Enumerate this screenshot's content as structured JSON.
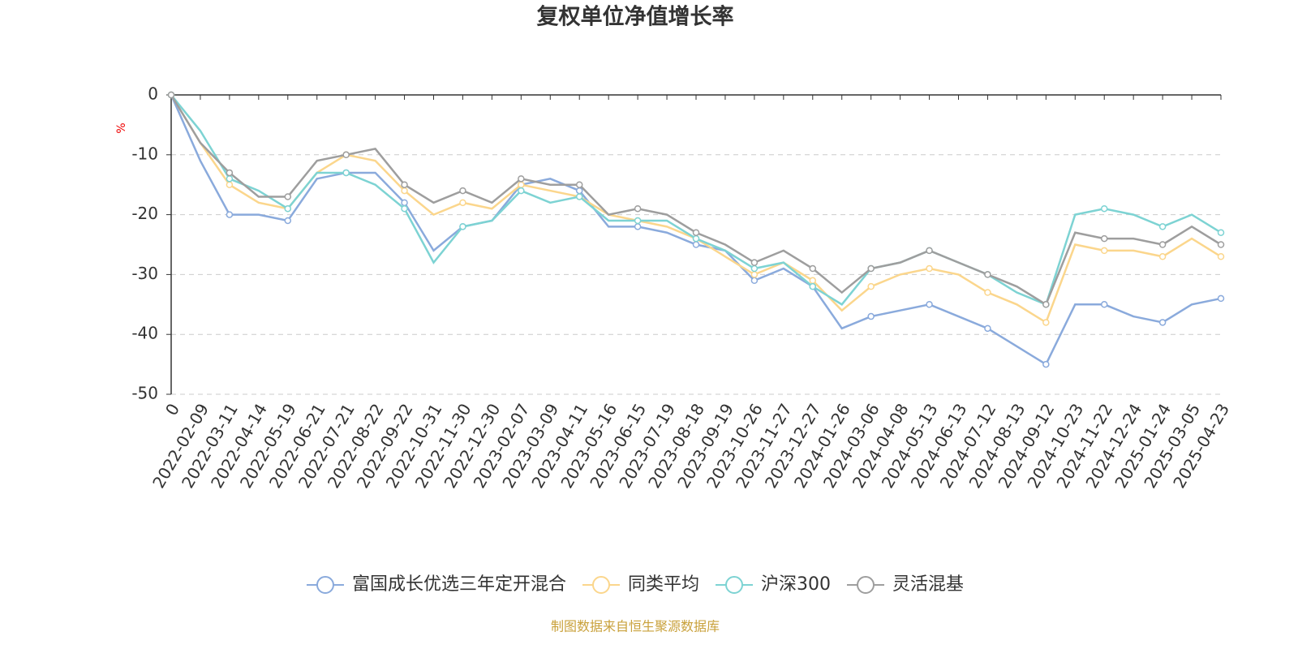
{
  "chart_data": {
    "type": "line",
    "title": "复权单位净值增长率",
    "y_label": "%",
    "source": "制图数据来自恒生聚源数据库",
    "categories": [
      "0",
      "2022-02-09",
      "2022-03-11",
      "2022-04-14",
      "2022-05-19",
      "2022-06-21",
      "2022-07-21",
      "2022-08-22",
      "2022-09-22",
      "2022-10-31",
      "2022-11-30",
      "2022-12-30",
      "2023-02-07",
      "2023-03-09",
      "2023-04-11",
      "2023-05-16",
      "2023-06-15",
      "2023-07-19",
      "2023-08-18",
      "2023-09-19",
      "2023-10-26",
      "2023-11-27",
      "2023-12-27",
      "2024-01-26",
      "2024-03-06",
      "2024-04-08",
      "2024-05-13",
      "2024-06-13",
      "2024-07-12",
      "2024-08-13",
      "2024-09-12",
      "2024-10-23",
      "2024-11-22",
      "2024-12-24",
      "2025-01-24",
      "2025-03-05",
      "2025-04-23"
    ],
    "series": [
      {
        "name": "富国成长优选三年定开混合",
        "color": "#8aaadc",
        "values": [
          0,
          -11,
          -20,
          -20,
          -21,
          -14,
          -13,
          -13,
          -18,
          -26,
          -22,
          -21,
          -15,
          -14,
          -16,
          -22,
          -22,
          -23,
          -25,
          -26,
          -31,
          -29,
          -32,
          -39,
          -37,
          -36,
          -35,
          -37,
          -39,
          -42,
          -45,
          -35,
          -35,
          -37,
          -38,
          -35,
          -34
        ]
      },
      {
        "name": "同类平均",
        "color": "#fbd68c",
        "values": [
          0,
          -8,
          -15,
          -18,
          -19,
          -13,
          -10,
          -11,
          -16,
          -20,
          -18,
          -19,
          -15,
          -16,
          -17,
          -20,
          -21,
          -22,
          -24,
          -27,
          -30,
          -28,
          -31,
          -36,
          -32,
          -30,
          -29,
          -30,
          -33,
          -35,
          -38,
          -25,
          -26,
          -26,
          -27,
          -24,
          -27
        ]
      },
      {
        "name": "沪深300",
        "color": "#7dd3d3",
        "values": [
          0,
          -6,
          -14,
          -16,
          -19,
          -13,
          -13,
          -15,
          -19,
          -28,
          -22,
          -21,
          -16,
          -18,
          -17,
          -21,
          -21,
          -21,
          -24,
          -26,
          -29,
          -28,
          -32,
          -35,
          -29,
          -28,
          -26,
          -28,
          -30,
          -33,
          -35,
          -20,
          -19,
          -20,
          -22,
          -20,
          -23
        ]
      },
      {
        "name": "灵活混基",
        "color": "#9e9e9e",
        "values": [
          0,
          -8,
          -13,
          -17,
          -17,
          -11,
          -10,
          -9,
          -15,
          -18,
          -16,
          -18,
          -14,
          -15,
          -15,
          -20,
          -19,
          -20,
          -23,
          -25,
          -28,
          -26,
          -29,
          -33,
          -29,
          -28,
          -26,
          -28,
          -30,
          -32,
          -35,
          -23,
          -24,
          -24,
          -25,
          -22,
          -25
        ]
      }
    ],
    "ylim": [
      -50,
      0
    ],
    "yticks": [
      0,
      -10,
      -20,
      -30,
      -40,
      -50
    ],
    "grid": true,
    "legend": "bottom"
  }
}
